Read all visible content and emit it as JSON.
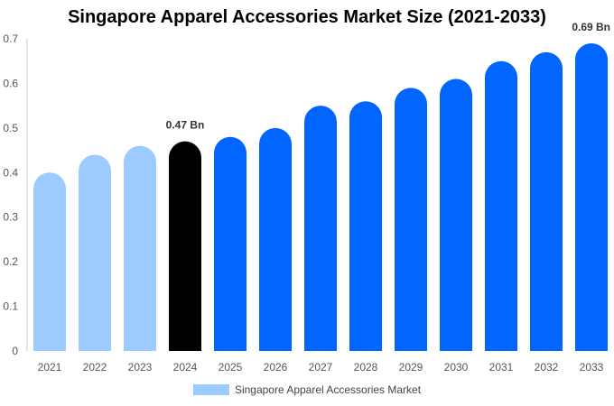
{
  "chart_data": {
    "type": "bar",
    "title": "Singapore Apparel Accessories Market Size (2021-2033)",
    "categories": [
      "2021",
      "2022",
      "2023",
      "2024",
      "2025",
      "2026",
      "2027",
      "2028",
      "2029",
      "2030",
      "2031",
      "2032",
      "2033"
    ],
    "series": [
      {
        "name": "Singapore Apparel Accessories Market",
        "values": [
          0.4,
          0.44,
          0.46,
          0.47,
          0.48,
          0.5,
          0.55,
          0.56,
          0.59,
          0.61,
          0.65,
          0.67,
          0.69
        ]
      }
    ],
    "bar_colors": [
      "#9ecbff",
      "#9ecbff",
      "#9ecbff",
      "#000000",
      "#0066ff",
      "#0066ff",
      "#0066ff",
      "#0066ff",
      "#0066ff",
      "#0066ff",
      "#0066ff",
      "#0066ff",
      "#0066ff"
    ],
    "legend_color": "#9ecbff",
    "ylim": [
      0,
      0.7
    ],
    "yticks": [
      "0",
      "0.1",
      "0.2",
      "0.3",
      "0.4",
      "0.5",
      "0.6",
      "0.7"
    ],
    "data_labels": [
      {
        "category": "2024",
        "text": "0.47 Bn"
      },
      {
        "category": "2033",
        "text": "0.69 Bn"
      }
    ],
    "grid": false,
    "legend_position": "bottom"
  }
}
